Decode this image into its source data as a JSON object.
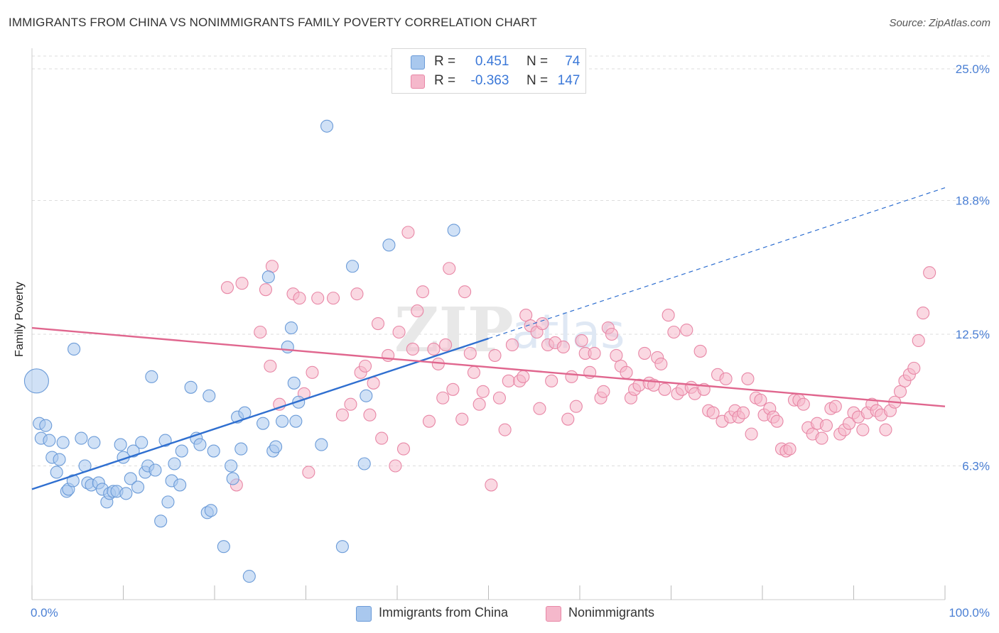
{
  "title": "IMMIGRANTS FROM CHINA VS NONIMMIGRANTS FAMILY POVERTY CORRELATION CHART",
  "source": "Source: ZipAtlas.com",
  "watermark": "ZIPatlas",
  "legend_stats": [
    {
      "r_label": "R =",
      "r_value": "0.451",
      "n_label": "N =",
      "n_value": "74"
    },
    {
      "r_label": "R =",
      "r_value": "-0.363",
      "n_label": "N =",
      "n_value": "147"
    }
  ],
  "colors": {
    "blue_fill": "#a9c8ee",
    "blue_stroke": "#6b9bd8",
    "blue_line": "#2f6fd0",
    "pink_fill": "#f5b8cb",
    "pink_stroke": "#e887a6",
    "pink_line": "#e0668e",
    "tick_text": "#4a7fd4",
    "grid": "#dddddd"
  },
  "chart_data": {
    "type": "scatter",
    "title": "IMMIGRANTS FROM CHINA VS NONIMMIGRANTS FAMILY POVERTY CORRELATION CHART",
    "xlabel": "",
    "ylabel": "Family Poverty",
    "xlim": [
      0,
      100
    ],
    "ylim": [
      0,
      26.3
    ],
    "x_tick_labels": [
      "0.0%",
      "100.0%"
    ],
    "y_ticks": [
      6.3,
      12.5,
      18.8,
      25.0
    ],
    "y_tick_labels": [
      "6.3%",
      "12.5%",
      "18.8%",
      "25.0%"
    ],
    "grid": true,
    "legend_position": "bottom",
    "series": [
      {
        "name": "Immigrants from China",
        "color": "#a9c8ee",
        "trend": {
          "x0": 0,
          "y0": 5.2,
          "x1": 50,
          "y1": 12.3,
          "dashed_to_x": 100,
          "dashed_to_y": 19.4
        },
        "points": [
          {
            "x": 0.5,
            "y": 10.3,
            "big": true
          },
          {
            "x": 0.8,
            "y": 8.3
          },
          {
            "x": 1.5,
            "y": 8.2
          },
          {
            "x": 1.0,
            "y": 7.6
          },
          {
            "x": 1.9,
            "y": 7.5
          },
          {
            "x": 2.2,
            "y": 6.7
          },
          {
            "x": 2.7,
            "y": 6.0
          },
          {
            "x": 3.0,
            "y": 6.6
          },
          {
            "x": 3.4,
            "y": 7.4
          },
          {
            "x": 3.8,
            "y": 5.1
          },
          {
            "x": 4.0,
            "y": 5.2
          },
          {
            "x": 4.5,
            "y": 5.6
          },
          {
            "x": 4.6,
            "y": 11.8
          },
          {
            "x": 5.4,
            "y": 7.6
          },
          {
            "x": 5.8,
            "y": 6.3
          },
          {
            "x": 6.1,
            "y": 5.5
          },
          {
            "x": 6.5,
            "y": 5.4
          },
          {
            "x": 6.8,
            "y": 7.4
          },
          {
            "x": 7.3,
            "y": 5.5
          },
          {
            "x": 7.7,
            "y": 5.2
          },
          {
            "x": 8.2,
            "y": 4.6
          },
          {
            "x": 8.5,
            "y": 5.0
          },
          {
            "x": 8.9,
            "y": 5.1
          },
          {
            "x": 9.3,
            "y": 5.1
          },
          {
            "x": 9.7,
            "y": 7.3
          },
          {
            "x": 10.0,
            "y": 6.7
          },
          {
            "x": 10.3,
            "y": 5.0
          },
          {
            "x": 10.8,
            "y": 5.7
          },
          {
            "x": 11.1,
            "y": 7.0
          },
          {
            "x": 11.6,
            "y": 5.3
          },
          {
            "x": 12.0,
            "y": 7.4
          },
          {
            "x": 12.4,
            "y": 6.0
          },
          {
            "x": 12.7,
            "y": 6.3
          },
          {
            "x": 13.1,
            "y": 10.5
          },
          {
            "x": 13.5,
            "y": 6.1
          },
          {
            "x": 14.1,
            "y": 3.7
          },
          {
            "x": 14.6,
            "y": 7.5
          },
          {
            "x": 14.9,
            "y": 4.6
          },
          {
            "x": 15.3,
            "y": 5.6
          },
          {
            "x": 15.6,
            "y": 6.4
          },
          {
            "x": 16.2,
            "y": 5.4
          },
          {
            "x": 16.4,
            "y": 7.0
          },
          {
            "x": 17.4,
            "y": 10.0
          },
          {
            "x": 18.0,
            "y": 7.6
          },
          {
            "x": 18.4,
            "y": 7.3
          },
          {
            "x": 19.2,
            "y": 4.1
          },
          {
            "x": 19.4,
            "y": 9.6
          },
          {
            "x": 19.6,
            "y": 4.2
          },
          {
            "x": 19.9,
            "y": 7.0
          },
          {
            "x": 21.0,
            "y": 2.5
          },
          {
            "x": 21.8,
            "y": 6.3
          },
          {
            "x": 22.0,
            "y": 5.7
          },
          {
            "x": 22.5,
            "y": 8.6
          },
          {
            "x": 22.9,
            "y": 7.1
          },
          {
            "x": 23.3,
            "y": 8.8
          },
          {
            "x": 23.8,
            "y": 1.1
          },
          {
            "x": 25.3,
            "y": 8.3
          },
          {
            "x": 26.4,
            "y": 7.0
          },
          {
            "x": 26.7,
            "y": 7.2
          },
          {
            "x": 27.4,
            "y": 8.4
          },
          {
            "x": 25.9,
            "y": 15.2
          },
          {
            "x": 28.0,
            "y": 11.9
          },
          {
            "x": 28.4,
            "y": 12.8
          },
          {
            "x": 28.7,
            "y": 10.2
          },
          {
            "x": 28.9,
            "y": 8.4
          },
          {
            "x": 29.2,
            "y": 9.3
          },
          {
            "x": 31.7,
            "y": 7.3
          },
          {
            "x": 32.3,
            "y": 22.3
          },
          {
            "x": 34.0,
            "y": 2.5
          },
          {
            "x": 35.1,
            "y": 15.7
          },
          {
            "x": 36.4,
            "y": 6.4
          },
          {
            "x": 36.6,
            "y": 9.6
          },
          {
            "x": 39.1,
            "y": 16.7
          },
          {
            "x": 46.2,
            "y": 17.4
          }
        ]
      },
      {
        "name": "Nonimmigrants",
        "color": "#f5b8cb",
        "trend": {
          "x0": 0,
          "y0": 12.8,
          "x1": 100,
          "y1": 9.1
        },
        "points": [
          {
            "x": 21.4,
            "y": 14.7
          },
          {
            "x": 22.4,
            "y": 5.4
          },
          {
            "x": 23.0,
            "y": 14.9
          },
          {
            "x": 25.0,
            "y": 12.6
          },
          {
            "x": 25.6,
            "y": 14.6
          },
          {
            "x": 26.1,
            "y": 11.0
          },
          {
            "x": 26.3,
            "y": 15.7
          },
          {
            "x": 27.1,
            "y": 9.2
          },
          {
            "x": 28.6,
            "y": 14.4
          },
          {
            "x": 29.3,
            "y": 14.2
          },
          {
            "x": 29.8,
            "y": 9.7
          },
          {
            "x": 30.3,
            "y": 6.0
          },
          {
            "x": 30.7,
            "y": 10.7
          },
          {
            "x": 31.3,
            "y": 14.2
          },
          {
            "x": 33.0,
            "y": 14.2
          },
          {
            "x": 34.0,
            "y": 8.7
          },
          {
            "x": 34.9,
            "y": 9.2
          },
          {
            "x": 35.6,
            "y": 14.4
          },
          {
            "x": 36.0,
            "y": 10.7
          },
          {
            "x": 36.5,
            "y": 11.0
          },
          {
            "x": 37.0,
            "y": 8.7
          },
          {
            "x": 37.4,
            "y": 10.2
          },
          {
            "x": 37.9,
            "y": 13.0
          },
          {
            "x": 38.3,
            "y": 7.6
          },
          {
            "x": 39.0,
            "y": 11.5
          },
          {
            "x": 39.8,
            "y": 6.3
          },
          {
            "x": 40.2,
            "y": 12.6
          },
          {
            "x": 40.7,
            "y": 7.1
          },
          {
            "x": 41.2,
            "y": 17.3
          },
          {
            "x": 41.7,
            "y": 11.8
          },
          {
            "x": 42.2,
            "y": 13.6
          },
          {
            "x": 42.8,
            "y": 14.5
          },
          {
            "x": 43.5,
            "y": 8.4
          },
          {
            "x": 44.0,
            "y": 11.8
          },
          {
            "x": 44.5,
            "y": 11.1
          },
          {
            "x": 45.0,
            "y": 9.5
          },
          {
            "x": 45.3,
            "y": 12.0
          },
          {
            "x": 45.7,
            "y": 15.6
          },
          {
            "x": 46.1,
            "y": 9.9
          },
          {
            "x": 47.1,
            "y": 8.5
          },
          {
            "x": 47.4,
            "y": 14.5
          },
          {
            "x": 48.0,
            "y": 11.6
          },
          {
            "x": 48.4,
            "y": 10.7
          },
          {
            "x": 49.0,
            "y": 9.2
          },
          {
            "x": 49.4,
            "y": 9.8
          },
          {
            "x": 50.3,
            "y": 5.4
          },
          {
            "x": 50.7,
            "y": 11.5
          },
          {
            "x": 51.2,
            "y": 9.5
          },
          {
            "x": 51.8,
            "y": 8.0
          },
          {
            "x": 52.2,
            "y": 10.3
          },
          {
            "x": 52.6,
            "y": 12.0
          },
          {
            "x": 53.4,
            "y": 10.3
          },
          {
            "x": 53.8,
            "y": 10.5
          },
          {
            "x": 54.1,
            "y": 13.4
          },
          {
            "x": 54.6,
            "y": 12.9
          },
          {
            "x": 55.3,
            "y": 12.6
          },
          {
            "x": 55.6,
            "y": 9.0
          },
          {
            "x": 55.9,
            "y": 13.0
          },
          {
            "x": 56.5,
            "y": 12.0
          },
          {
            "x": 56.9,
            "y": 10.3
          },
          {
            "x": 57.3,
            "y": 12.1
          },
          {
            "x": 58.2,
            "y": 11.9
          },
          {
            "x": 58.7,
            "y": 8.5
          },
          {
            "x": 59.1,
            "y": 10.5
          },
          {
            "x": 59.6,
            "y": 9.1
          },
          {
            "x": 60.2,
            "y": 12.2
          },
          {
            "x": 60.6,
            "y": 11.6
          },
          {
            "x": 61.1,
            "y": 10.7
          },
          {
            "x": 61.6,
            "y": 11.6
          },
          {
            "x": 62.3,
            "y": 9.5
          },
          {
            "x": 62.6,
            "y": 9.8
          },
          {
            "x": 63.1,
            "y": 12.8
          },
          {
            "x": 63.5,
            "y": 12.5
          },
          {
            "x": 64.0,
            "y": 11.5
          },
          {
            "x": 64.5,
            "y": 11.0
          },
          {
            "x": 65.1,
            "y": 10.7
          },
          {
            "x": 65.6,
            "y": 9.5
          },
          {
            "x": 66.0,
            "y": 9.9
          },
          {
            "x": 66.5,
            "y": 10.1
          },
          {
            "x": 67.1,
            "y": 11.6
          },
          {
            "x": 67.6,
            "y": 10.2
          },
          {
            "x": 68.1,
            "y": 10.1
          },
          {
            "x": 68.5,
            "y": 11.4
          },
          {
            "x": 68.9,
            "y": 11.1
          },
          {
            "x": 69.3,
            "y": 9.9
          },
          {
            "x": 69.7,
            "y": 13.4
          },
          {
            "x": 70.3,
            "y": 12.6
          },
          {
            "x": 70.7,
            "y": 9.7
          },
          {
            "x": 71.2,
            "y": 9.9
          },
          {
            "x": 71.7,
            "y": 12.7
          },
          {
            "x": 72.2,
            "y": 10.0
          },
          {
            "x": 72.6,
            "y": 9.7
          },
          {
            "x": 73.2,
            "y": 11.7
          },
          {
            "x": 73.6,
            "y": 9.9
          },
          {
            "x": 74.1,
            "y": 8.9
          },
          {
            "x": 74.6,
            "y": 8.8
          },
          {
            "x": 75.1,
            "y": 10.6
          },
          {
            "x": 75.6,
            "y": 8.4
          },
          {
            "x": 76.0,
            "y": 10.4
          },
          {
            "x": 76.5,
            "y": 8.6
          },
          {
            "x": 77.0,
            "y": 8.9
          },
          {
            "x": 77.4,
            "y": 8.6
          },
          {
            "x": 77.9,
            "y": 8.8
          },
          {
            "x": 78.4,
            "y": 10.4
          },
          {
            "x": 78.8,
            "y": 7.8
          },
          {
            "x": 79.3,
            "y": 9.5
          },
          {
            "x": 79.8,
            "y": 9.4
          },
          {
            "x": 80.2,
            "y": 8.7
          },
          {
            "x": 80.8,
            "y": 9.0
          },
          {
            "x": 81.2,
            "y": 8.6
          },
          {
            "x": 81.6,
            "y": 8.4
          },
          {
            "x": 82.1,
            "y": 7.1
          },
          {
            "x": 82.6,
            "y": 7.0
          },
          {
            "x": 83.0,
            "y": 7.1
          },
          {
            "x": 83.5,
            "y": 9.4
          },
          {
            "x": 84.0,
            "y": 9.4
          },
          {
            "x": 84.5,
            "y": 9.2
          },
          {
            "x": 85.0,
            "y": 8.1
          },
          {
            "x": 85.5,
            "y": 7.8
          },
          {
            "x": 86.0,
            "y": 8.3
          },
          {
            "x": 86.5,
            "y": 7.6
          },
          {
            "x": 87.0,
            "y": 8.2
          },
          {
            "x": 87.5,
            "y": 9.0
          },
          {
            "x": 88.0,
            "y": 9.1
          },
          {
            "x": 88.5,
            "y": 7.8
          },
          {
            "x": 89.0,
            "y": 8.0
          },
          {
            "x": 89.5,
            "y": 8.3
          },
          {
            "x": 90.0,
            "y": 8.8
          },
          {
            "x": 90.5,
            "y": 8.6
          },
          {
            "x": 91.0,
            "y": 8.0
          },
          {
            "x": 91.5,
            "y": 8.8
          },
          {
            "x": 92.0,
            "y": 9.2
          },
          {
            "x": 92.5,
            "y": 8.9
          },
          {
            "x": 93.0,
            "y": 8.7
          },
          {
            "x": 93.5,
            "y": 8.0
          },
          {
            "x": 94.0,
            "y": 8.9
          },
          {
            "x": 94.5,
            "y": 9.3
          },
          {
            "x": 95.1,
            "y": 9.8
          },
          {
            "x": 95.6,
            "y": 10.3
          },
          {
            "x": 96.1,
            "y": 10.6
          },
          {
            "x": 96.6,
            "y": 10.9
          },
          {
            "x": 97.1,
            "y": 12.2
          },
          {
            "x": 97.6,
            "y": 13.5
          },
          {
            "x": 98.3,
            "y": 15.4
          }
        ]
      }
    ]
  }
}
